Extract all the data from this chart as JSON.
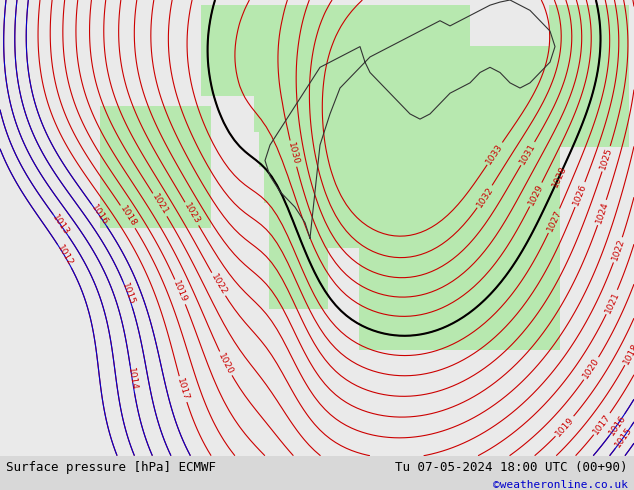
{
  "title_left": "Surface pressure [hPa] ECMWF",
  "title_right": "Tu 07-05-2024 18:00 UTC (00+90)",
  "watermark": "©weatheronline.co.uk",
  "bg_color": "#d8d8d8",
  "land_color": "#b8e8b0",
  "sea_color": "#e8e8e8",
  "contour_color_red": "#cc0000",
  "contour_color_blue": "#0000cc",
  "contour_color_black": "#000000",
  "text_color_bottom_left": "#000000",
  "text_color_bottom_right": "#000000",
  "watermark_color": "#0000cc",
  "figsize": [
    6.34,
    4.9
  ],
  "dpi": 100
}
